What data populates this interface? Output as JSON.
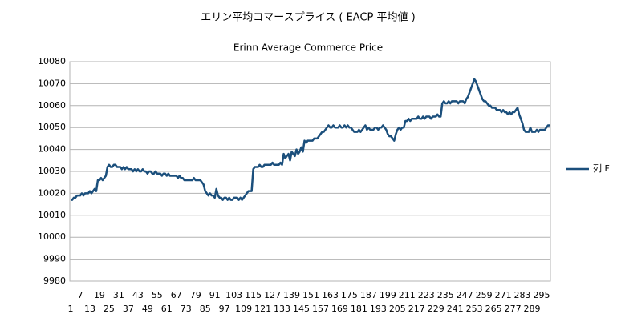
{
  "chart_data": {
    "type": "line",
    "title": "エリン平均コマースプライス ( EACP 平均値 )",
    "subtitle": "Erinn Average Commerce Price",
    "categories": [
      1,
      null,
      null,
      null,
      null,
      null,
      7,
      null,
      null,
      null,
      null,
      null,
      13,
      null,
      null,
      null,
      null,
      null,
      19,
      null,
      null,
      null,
      null,
      null,
      25,
      null,
      null,
      null,
      null,
      null,
      31,
      null,
      null,
      null,
      null,
      null,
      37,
      null,
      null,
      null,
      null,
      null,
      43,
      null,
      null,
      null,
      null,
      null,
      49,
      null,
      null,
      null,
      null,
      null,
      55,
      null,
      null,
      null,
      null,
      null,
      61,
      null,
      null,
      null,
      null,
      null,
      67,
      null,
      null,
      null,
      null,
      null,
      73,
      null,
      null,
      null,
      null,
      null,
      79,
      null,
      null,
      null,
      null,
      null,
      85,
      null,
      null,
      null,
      null,
      null,
      91,
      null,
      null,
      null,
      null,
      null,
      97,
      null,
      null,
      null,
      null,
      null,
      103,
      null,
      null,
      null,
      null,
      null,
      109,
      null,
      null,
      null,
      null,
      null,
      115,
      null,
      null,
      null,
      null,
      null,
      121,
      null,
      null,
      null,
      null,
      null,
      127,
      null,
      null,
      null,
      null,
      null,
      133,
      null,
      null,
      null,
      null,
      null,
      139,
      null,
      null,
      null,
      null,
      null,
      145,
      null,
      null,
      null,
      null,
      null,
      151,
      null,
      null,
      null,
      null,
      null,
      157,
      null,
      null,
      null,
      null,
      null,
      163,
      null,
      null,
      null,
      null,
      null,
      169,
      null,
      null,
      null,
      null,
      null,
      175,
      null,
      null,
      null,
      null,
      null,
      181,
      null,
      null,
      null,
      null,
      null,
      187,
      null,
      null,
      null,
      null,
      null,
      193,
      null,
      null,
      null,
      null,
      null,
      199,
      null,
      null,
      null,
      null,
      null,
      205,
      null,
      null,
      null,
      null,
      null,
      211,
      null,
      null,
      null,
      null,
      null,
      217,
      null,
      null,
      null,
      null,
      null,
      223,
      null,
      null,
      null,
      null,
      null,
      229,
      null,
      null,
      null,
      null,
      null,
      235,
      null,
      null,
      null,
      null,
      null,
      241,
      null,
      null,
      null,
      null,
      null,
      247,
      null,
      null,
      null,
      null,
      null,
      253,
      null,
      null,
      null,
      null,
      null,
      259,
      null,
      null,
      null,
      null,
      null,
      265,
      null,
      null,
      null,
      null,
      null,
      271,
      null,
      null,
      null,
      null,
      null,
      277,
      null,
      null,
      null,
      null,
      null,
      283,
      null,
      null,
      null,
      null,
      null,
      289,
      null,
      null,
      null,
      null,
      null,
      295,
      null,
      null,
      null,
      null,
      null
    ],
    "series": [
      {
        "name": "列 F",
        "color": "#1b4f7c",
        "values": [
          10017,
          10017,
          10018,
          10018,
          10019,
          10019,
          10019,
          10020,
          10019,
          10020,
          10020,
          10020,
          10021,
          10020,
          10021,
          10022,
          10021,
          10026,
          10026,
          10027,
          10026,
          10027,
          10028,
          10032,
          10033,
          10032,
          10032,
          10033,
          10033,
          10032,
          10032,
          10032,
          10031,
          10032,
          10031,
          10032,
          10031,
          10031,
          10031,
          10030,
          10031,
          10030,
          10031,
          10030,
          10030,
          10031,
          10030,
          10030,
          10029,
          10030,
          10030,
          10029,
          10029,
          10030,
          10029,
          10029,
          10029,
          10028,
          10029,
          10029,
          10028,
          10029,
          10028,
          10028,
          10028,
          10028,
          10028,
          10027,
          10028,
          10027,
          10027,
          10026,
          10026,
          10026,
          10026,
          10026,
          10026,
          10027,
          10026,
          10026,
          10026,
          10026,
          10025,
          10024,
          10021,
          10020,
          10019,
          10020,
          10019,
          10019,
          10018,
          10022,
          10019,
          10018,
          10018,
          10017,
          10018,
          10018,
          10017,
          10018,
          10017,
          10017,
          10018,
          10018,
          10018,
          10017,
          10018,
          10017,
          10018,
          10019,
          10020,
          10021,
          10021,
          10021,
          10031,
          10032,
          10032,
          10032,
          10033,
          10032,
          10032,
          10033,
          10033,
          10033,
          10033,
          10033,
          10034,
          10033,
          10033,
          10033,
          10033,
          10034,
          10033,
          10038,
          10036,
          10037,
          10038,
          10035,
          10039,
          10038,
          10037,
          10040,
          10038,
          10039,
          10041,
          10039,
          10044,
          10043,
          10044,
          10044,
          10044,
          10044,
          10045,
          10045,
          10045,
          10046,
          10047,
          10048,
          10048,
          10049,
          10050,
          10051,
          10050,
          10050,
          10051,
          10050,
          10050,
          10050,
          10051,
          10050,
          10050,
          10051,
          10050,
          10051,
          10050,
          10050,
          10049,
          10048,
          10048,
          10048,
          10049,
          10048,
          10049,
          10050,
          10051,
          10049,
          10050,
          10049,
          10049,
          10049,
          10050,
          10050,
          10049,
          10050,
          10050,
          10051,
          10050,
          10049,
          10047,
          10046,
          10046,
          10045,
          10044,
          10047,
          10049,
          10050,
          10049,
          10050,
          10050,
          10053,
          10053,
          10054,
          10053,
          10054,
          10054,
          10054,
          10054,
          10055,
          10054,
          10054,
          10055,
          10054,
          10055,
          10055,
          10055,
          10054,
          10055,
          10055,
          10055,
          10056,
          10055,
          10055,
          10061,
          10062,
          10061,
          10061,
          10062,
          10061,
          10062,
          10062,
          10062,
          10062,
          10061,
          10062,
          10062,
          10062,
          10061,
          10063,
          10064,
          10066,
          10068,
          10070,
          10072,
          10071,
          10069,
          10067,
          10065,
          10063,
          10062,
          10062,
          10061,
          10060,
          10060,
          10059,
          10059,
          10059,
          10058,
          10058,
          10058,
          10057,
          10058,
          10057,
          10057,
          10056,
          10057,
          10056,
          10057,
          10057,
          10058,
          10059,
          10056,
          10054,
          10052,
          10049,
          10048,
          10048,
          10048,
          10050,
          10048,
          10048,
          10048,
          10049,
          10048,
          10049,
          10049,
          10049,
          10049,
          10050,
          10051,
          10051
        ]
      }
    ],
    "ylim": [
      9980,
      10080
    ],
    "yticks": [
      9980,
      9990,
      10000,
      10010,
      10020,
      10030,
      10040,
      10050,
      10060,
      10070,
      10080
    ],
    "grid": true,
    "legend": "right"
  }
}
